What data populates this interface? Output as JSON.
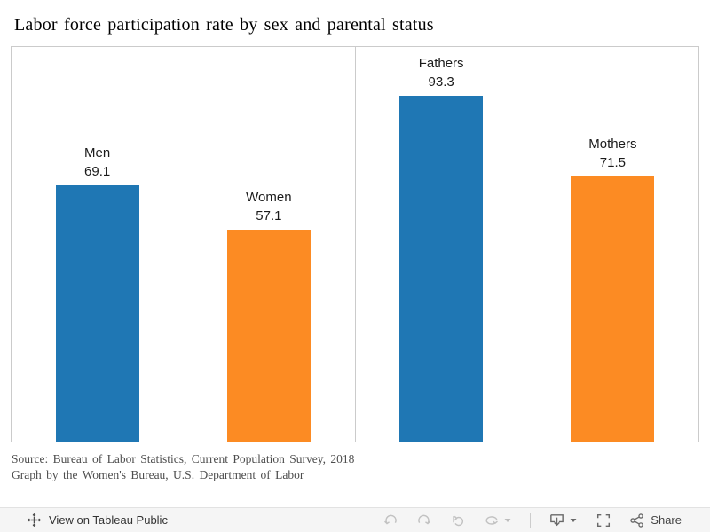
{
  "title": "Labor force participation rate by sex and parental status",
  "chart_data": {
    "type": "bar",
    "title": "Labor force participation rate by sex and parental status",
    "categories": [
      "Men",
      "Women",
      "Fathers",
      "Mothers"
    ],
    "values": [
      69.1,
      57.1,
      93.3,
      71.5
    ],
    "ylim": [
      0,
      106.5
    ],
    "grid": false,
    "axes_shown": false,
    "data_labels_position": "above-bar",
    "panels": [
      {
        "bars": [
          {
            "label": "Men",
            "value": 69.1,
            "color": "#1f77b4"
          },
          {
            "label": "Women",
            "value": 57.1,
            "color": "#fc8b23"
          }
        ]
      },
      {
        "bars": [
          {
            "label": "Fathers",
            "value": 93.3,
            "color": "#1f77b4"
          },
          {
            "label": "Mothers",
            "value": 71.5,
            "color": "#fc8b23"
          }
        ]
      }
    ],
    "colors": {
      "male_blue": "#1f77b4",
      "female_orange": "#fc8b23"
    }
  },
  "source_note": {
    "line1": "Source: Bureau of Labor Statistics, Current Population Survey, 2018",
    "line2": "Graph by the Women's Bureau, U.S. Department of Labor"
  },
  "toolbar": {
    "view_label": "View on Tableau Public",
    "share_label": "Share",
    "icons": [
      "tableau-logo",
      "undo",
      "redo",
      "replay",
      "refresh",
      "refresh-dropdown",
      "download",
      "download-dropdown",
      "fullscreen",
      "share"
    ],
    "disabled_icon_color": "#c2c2c2",
    "enabled_icon_color": "#696969",
    "background": "#f5f5f5"
  }
}
